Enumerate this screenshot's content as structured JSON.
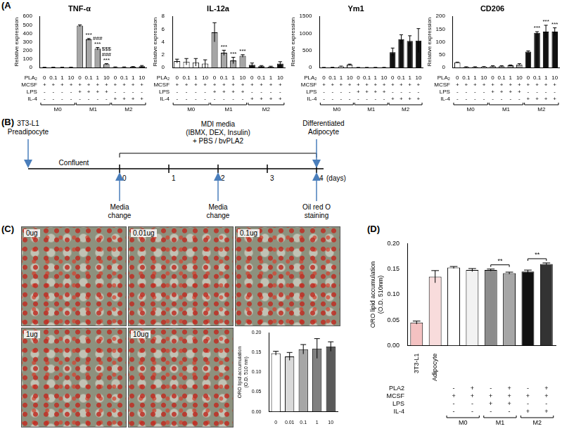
{
  "panel_labels": [
    "(A)",
    "(B)",
    "(C)",
    "(D)"
  ],
  "chart_data": [
    {
      "type": "bar",
      "title": "TNF-α",
      "y_label": "Relative expression",
      "grid": false,
      "tick_labels": "y",
      "values": [
        2,
        3,
        3,
        3,
        490,
        330,
        220,
        40,
        5,
        5,
        8,
        15
      ],
      "errors": [
        1,
        1,
        1,
        1,
        10,
        10,
        15,
        5,
        2,
        2,
        3,
        8
      ],
      "colors": [
        "#ffffff",
        "#ffffff",
        "#ffffff",
        "#ffffff",
        "#a6a6a6",
        "#a6a6a6",
        "#a6a6a6",
        "#a6a6a6",
        "#111111",
        "#111111",
        "#111111",
        "#111111"
      ],
      "ylim": [
        0,
        600
      ],
      "yticks": [
        0,
        100,
        200,
        300,
        400,
        500,
        600
      ],
      "significance": [
        null,
        null,
        null,
        null,
        null,
        [
          "***"
        ],
        [
          "***",
          "###"
        ],
        [
          "***",
          "###",
          "$$$"
        ],
        null,
        null,
        null,
        null
      ],
      "x_table": [
        {
          "label": "PLA₂",
          "cells": [
            "0",
            "0.1",
            "1",
            "10",
            "0",
            "0.1",
            "1",
            "10",
            "0",
            "0.1",
            "1",
            "10"
          ]
        },
        {
          "label": "MCSF",
          "cells": [
            "+",
            "+",
            "+",
            "+",
            "+",
            "+",
            "+",
            "+",
            "+",
            "+",
            "+",
            "+"
          ]
        },
        {
          "label": "LPS",
          "cells": [
            "-",
            "-",
            "-",
            "-",
            "+",
            "+",
            "+",
            "+",
            "-",
            "-",
            "-",
            "-"
          ]
        },
        {
          "label": "IL-4",
          "cells": [
            "-",
            "-",
            "-",
            "-",
            "-",
            "-",
            "-",
            "-",
            "+",
            "+",
            "+",
            "+"
          ]
        }
      ],
      "groups": [
        "M0",
        "M0",
        "M0",
        "M0",
        "M1",
        "M1",
        "M1",
        "M1",
        "M2",
        "M2",
        "M2",
        "M2"
      ]
    },
    {
      "type": "bar",
      "title": "IL-12a",
      "y_label": "Relative expression",
      "grid": false,
      "tick_labels": "y",
      "values": [
        1.0,
        0.9,
        0.8,
        0.6,
        5.5,
        2.3,
        1.1,
        1.8,
        0.4,
        0.2,
        0.1,
        0.6
      ],
      "errors": [
        0.3,
        0.5,
        0.6,
        0.6,
        1.5,
        0.4,
        0.5,
        0.2,
        0.3,
        0.1,
        0.1,
        0.3
      ],
      "colors": [
        "#ffffff",
        "#ffffff",
        "#ffffff",
        "#ffffff",
        "#a6a6a6",
        "#a6a6a6",
        "#a6a6a6",
        "#a6a6a6",
        "#111111",
        "#111111",
        "#111111",
        "#111111"
      ],
      "ylim": [
        0,
        8
      ],
      "yticks": [
        0,
        2,
        4,
        6,
        8
      ],
      "significance": [
        null,
        null,
        null,
        null,
        null,
        [
          "***"
        ],
        [
          "***"
        ],
        [
          "***"
        ],
        null,
        null,
        null,
        null
      ],
      "x_table": [
        {
          "label": "PLA₂",
          "cells": [
            "0",
            "0.1",
            "1",
            "10",
            "0",
            "0.1",
            "1",
            "10",
            "0",
            "0.1",
            "1",
            "10"
          ]
        },
        {
          "label": "MCSF",
          "cells": [
            "+",
            "+",
            "+",
            "+",
            "+",
            "+",
            "+",
            "+",
            "+",
            "+",
            "+",
            "+"
          ]
        },
        {
          "label": "LPS",
          "cells": [
            "-",
            "-",
            "-",
            "-",
            "+",
            "+",
            "+",
            "+",
            "-",
            "-",
            "-",
            "-"
          ]
        },
        {
          "label": "IL-4",
          "cells": [
            "-",
            "-",
            "-",
            "-",
            "-",
            "-",
            "-",
            "-",
            "+",
            "+",
            "+",
            "+"
          ]
        }
      ],
      "groups": [
        "M0",
        "M0",
        "M0",
        "M0",
        "M1",
        "M1",
        "M1",
        "M1",
        "M2",
        "M2",
        "M2",
        "M2"
      ]
    },
    {
      "type": "bar",
      "title": "Ym1",
      "y_label": "Relative expression",
      "grid": false,
      "tick_labels": "y",
      "values": [
        2,
        5,
        30,
        80,
        2,
        2,
        3,
        3,
        450,
        830,
        780,
        790
      ],
      "errors": [
        1,
        2,
        10,
        20,
        1,
        1,
        1,
        1,
        120,
        130,
        150,
        350
      ],
      "colors": [
        "#ffffff",
        "#ffffff",
        "#ffffff",
        "#ffffff",
        "#a6a6a6",
        "#a6a6a6",
        "#a6a6a6",
        "#a6a6a6",
        "#111111",
        "#111111",
        "#111111",
        "#111111"
      ],
      "ylim": [
        0,
        1500
      ],
      "yticks": [
        0,
        500,
        1000,
        1500
      ],
      "x_table": [
        {
          "label": "PLA₂",
          "cells": [
            "0",
            "0.1",
            "1",
            "10",
            "0",
            "0.1",
            "1",
            "10",
            "0",
            "0.1",
            "1",
            "10"
          ]
        },
        {
          "label": "MCSF",
          "cells": [
            "+",
            "+",
            "+",
            "+",
            "+",
            "+",
            "+",
            "+",
            "+",
            "+",
            "+",
            "+"
          ]
        },
        {
          "label": "LPS",
          "cells": [
            "-",
            "-",
            "-",
            "-",
            "+",
            "+",
            "+",
            "+",
            "-",
            "-",
            "-",
            "-"
          ]
        },
        {
          "label": "IL-4",
          "cells": [
            "-",
            "-",
            "-",
            "-",
            "-",
            "-",
            "-",
            "-",
            "+",
            "+",
            "+",
            "+"
          ]
        }
      ],
      "groups": [
        "M0",
        "M0",
        "M0",
        "M0",
        "M1",
        "M1",
        "M1",
        "M1",
        "M2",
        "M2",
        "M2",
        "M2"
      ]
    },
    {
      "type": "bar",
      "title": "CD206",
      "y_label": "Relative expression",
      "grid": false,
      "tick_labels": "y",
      "values": [
        20,
        2,
        2,
        3,
        5,
        5,
        8,
        12,
        62,
        135,
        140,
        140
      ],
      "errors": [
        1,
        1,
        1,
        1,
        2,
        2,
        2,
        3,
        3,
        5,
        25,
        15
      ],
      "colors": [
        "#ffffff",
        "#ffffff",
        "#ffffff",
        "#ffffff",
        "#a6a6a6",
        "#a6a6a6",
        "#a6a6a6",
        "#a6a6a6",
        "#111111",
        "#111111",
        "#111111",
        "#111111"
      ],
      "ylim": [
        0,
        200
      ],
      "yticks": [
        0,
        50,
        100,
        150,
        200
      ],
      "significance": [
        null,
        null,
        null,
        null,
        null,
        null,
        null,
        null,
        null,
        [
          "***"
        ],
        [
          "***"
        ],
        [
          "***"
        ]
      ],
      "x_table": [
        {
          "label": "PLA₂",
          "cells": [
            "0",
            "0.1",
            "1",
            "10",
            "0",
            "0.1",
            "1",
            "10",
            "0",
            "0.1",
            "1",
            "10"
          ]
        },
        {
          "label": "MCSF",
          "cells": [
            "+",
            "+",
            "+",
            "+",
            "+",
            "+",
            "+",
            "+",
            "+",
            "+",
            "+",
            "+"
          ]
        },
        {
          "label": "LPS",
          "cells": [
            "-",
            "-",
            "-",
            "-",
            "+",
            "+",
            "+",
            "+",
            "-",
            "-",
            "-",
            "-"
          ]
        },
        {
          "label": "IL-4",
          "cells": [
            "-",
            "-",
            "-",
            "-",
            "-",
            "-",
            "-",
            "-",
            "+",
            "+",
            "+",
            "+"
          ]
        }
      ],
      "groups": [
        "M0",
        "M0",
        "M0",
        "M0",
        "M1",
        "M1",
        "M1",
        "M1",
        "M2",
        "M2",
        "M2",
        "M2"
      ]
    },
    {
      "type": "bar",
      "y_label": [
        "ORO lipid accumulation",
        "(O.D. 510 nm)"
      ],
      "grid": false,
      "categories": [
        "0",
        "0.01",
        "0.1",
        "1",
        "10"
      ],
      "values": [
        0.148,
        0.14,
        0.158,
        0.16,
        0.165
      ],
      "errors": [
        0.005,
        0.01,
        0.012,
        0.025,
        0.012
      ],
      "colors": [
        "#ffffff",
        "#d9d9d9",
        "#a6a6a6",
        "#808080",
        "#595959"
      ],
      "ylim": [
        0,
        0.2
      ],
      "yticks": [
        {
          "value": 0,
          "label": "0.00"
        },
        {
          "value": 0.05,
          "label": "0.05"
        },
        {
          "value": 0.1,
          "label": "0.10"
        },
        {
          "value": 0.15,
          "label": "0.15"
        },
        {
          "value": 0.2,
          "label": "0.20"
        }
      ]
    },
    {
      "type": "bar",
      "y_label": [
        "ORO lipid accumulation",
        "(O.D. 510nm)"
      ],
      "grid": false,
      "categories": [
        "3T3-L1",
        "Adipocyte",
        null,
        null,
        null,
        null,
        null,
        null
      ],
      "values": [
        0.045,
        0.135,
        0.153,
        0.148,
        0.148,
        0.142,
        0.145,
        0.16
      ],
      "errors": [
        0.003,
        0.012,
        0.002,
        0.003,
        0.002,
        0.002,
        0.003,
        0.002
      ],
      "colors": [
        "#f4c2c2",
        "#f8dcdc",
        "#ffffff",
        "#f2f2f2",
        "#8c8c8c",
        "#a6a6a6",
        "#111111",
        "#333333"
      ],
      "ylim": [
        0,
        0.2
      ],
      "yticks": [
        {
          "value": 0,
          "label": "0.00"
        },
        {
          "value": 0.05,
          "label": "0.05"
        },
        {
          "value": 0.1,
          "label": "0.10"
        },
        {
          "value": 0.15,
          "label": "0.15"
        },
        {
          "value": 0.2,
          "label": "0.20"
        }
      ],
      "comparisons": [
        {
          "pair": [
            4,
            5
          ],
          "label": "**"
        },
        {
          "pair": [
            6,
            7
          ],
          "label": "**"
        }
      ],
      "x_table": [
        {
          "label": "PLA2",
          "cells": [
            null,
            null,
            "-",
            "+",
            "-",
            "+",
            "-",
            "+"
          ]
        },
        {
          "label": "MCSF",
          "cells": [
            null,
            null,
            "+",
            "+",
            "+",
            "+",
            "+",
            "+"
          ]
        },
        {
          "label": "LPS",
          "cells": [
            null,
            null,
            "-",
            "-",
            "+",
            "+",
            "-",
            "-"
          ]
        },
        {
          "label": "IL-4",
          "cells": [
            null,
            null,
            "-",
            "-",
            "-",
            "-",
            "+",
            "+"
          ]
        }
      ],
      "groups": [
        null,
        null,
        "M0",
        "M0",
        "M1",
        "M1",
        "M2",
        "M2"
      ]
    }
  ],
  "timeline": {
    "start": [
      "3T3-L1",
      "Preadipocyte"
    ],
    "end": [
      "Differentiated",
      "Adipocyte"
    ],
    "phase": "Confluent",
    "media": [
      "MDI media",
      "(IBMX, DEX, Insulin)",
      "+ PBS / bvPLA2"
    ],
    "days": [
      0,
      1,
      2,
      3,
      4
    ],
    "unit": "(days)",
    "events": [
      {
        "day": 0,
        "text": [
          "Media",
          "change"
        ]
      },
      {
        "day": 2,
        "text": [
          "Media",
          "change"
        ]
      },
      {
        "day": 4,
        "text": [
          "Oil red O",
          "staining"
        ]
      }
    ]
  },
  "micrographs": {
    "labels": [
      "0ug",
      "0.01ug",
      "0.1ug",
      "1ug",
      "10ug"
    ]
  }
}
